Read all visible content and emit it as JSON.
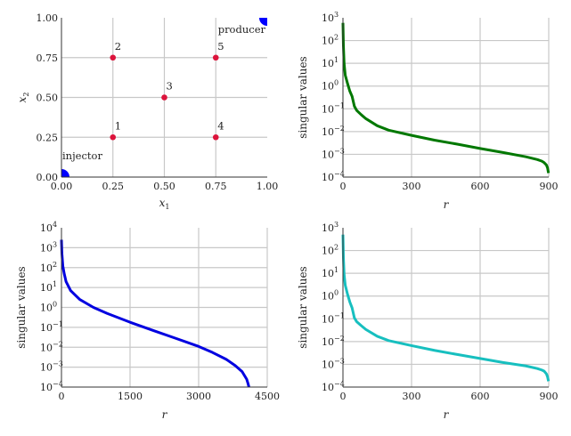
{
  "chart_data": [
    {
      "type": "scatter",
      "xlabel": "x",
      "xlabel_sub": "1",
      "ylabel": "x",
      "ylabel_sub": "2",
      "xlim": [
        0,
        1
      ],
      "ylim": [
        0,
        1
      ],
      "grid": true,
      "xticks": [
        "0.00",
        "0.25",
        "0.50",
        "0.75",
        "1.00"
      ],
      "yticks": [
        "0.00",
        "0.25",
        "0.50",
        "0.75",
        "1.00"
      ],
      "points": [
        {
          "label": "1",
          "x": 0.25,
          "y": 0.25
        },
        {
          "label": "2",
          "x": 0.25,
          "y": 0.75
        },
        {
          "label": "3",
          "x": 0.5,
          "y": 0.5
        },
        {
          "label": "4",
          "x": 0.75,
          "y": 0.25
        },
        {
          "label": "5",
          "x": 0.75,
          "y": 0.75
        }
      ],
      "point_color": "#dc143c",
      "wells": [
        {
          "label": "injector",
          "x": 0,
          "y": 0
        },
        {
          "label": "producer",
          "x": 1,
          "y": 1
        }
      ],
      "well_color": "#0000ff"
    },
    {
      "type": "line",
      "xlabel": "r",
      "ylabel": "singular values",
      "scale_y": "log",
      "xlim": [
        0,
        900
      ],
      "ylim": [
        0.0001,
        1000
      ],
      "grid": true,
      "xticks": [
        "0",
        "300",
        "600",
        "900"
      ],
      "yticks_exp": [
        "3",
        "2",
        "1",
        "0",
        "-1",
        "-2",
        "-3",
        "-4"
      ],
      "color": "#007800",
      "series": [
        {
          "x": [
            0,
            2,
            5,
            10,
            20,
            30,
            40,
            50,
            60,
            80,
            100,
            150,
            200,
            300,
            400,
            500,
            600,
            700,
            800,
            850,
            870,
            880,
            890,
            895,
            899
          ],
          "y": [
            600,
            60,
            10,
            3,
            1.3,
            0.6,
            0.35,
            0.13,
            0.085,
            0.055,
            0.037,
            0.018,
            0.0115,
            0.0068,
            0.0042,
            0.0028,
            0.0018,
            0.0012,
            0.00078,
            0.00059,
            0.0005,
            0.00043,
            0.00034,
            0.00025,
            0.00015
          ]
        }
      ]
    },
    {
      "type": "line",
      "xlabel": "r",
      "ylabel": "singular values",
      "scale_y": "log",
      "xlim": [
        0,
        4500
      ],
      "ylim": [
        0.0001,
        10000
      ],
      "grid": true,
      "xticks": [
        "0",
        "1500",
        "3000",
        "4500"
      ],
      "yticks_exp": [
        "4",
        "3",
        "2",
        "1",
        "0",
        "-1",
        "-2",
        "-3",
        "-4"
      ],
      "color": "#0000e0",
      "series": [
        {
          "x": [
            0,
            10,
            30,
            60,
            100,
            200,
            400,
            700,
            1000,
            1500,
            2000,
            2500,
            3000,
            3300,
            3600,
            3800,
            3950,
            4050,
            4080,
            4100
          ],
          "y": [
            2500,
            500,
            120,
            50,
            20,
            7,
            2.5,
            1,
            0.5,
            0.18,
            0.07,
            0.028,
            0.011,
            0.0055,
            0.0025,
            0.0012,
            0.0006,
            0.00025,
            0.00015,
            0.0001
          ]
        }
      ]
    },
    {
      "type": "line",
      "xlabel": "r",
      "ylabel": "singular values",
      "scale_y": "log",
      "xlim": [
        0,
        900
      ],
      "ylim": [
        0.0001,
        1000
      ],
      "grid": true,
      "xticks": [
        "0",
        "300",
        "600",
        "900"
      ],
      "yticks_exp": [
        "3",
        "2",
        "1",
        "0",
        "-1",
        "-2",
        "-3",
        "-4"
      ],
      "color": "#17bfbf",
      "series": [
        {
          "x": [
            0,
            2,
            5,
            10,
            20,
            30,
            40,
            50,
            60,
            80,
            100,
            150,
            200,
            300,
            400,
            500,
            600,
            700,
            800,
            850,
            870,
            880,
            890,
            895,
            899
          ],
          "y": [
            500,
            50,
            9,
            3,
            1.2,
            0.55,
            0.3,
            0.11,
            0.075,
            0.05,
            0.034,
            0.017,
            0.011,
            0.0066,
            0.0041,
            0.0027,
            0.0018,
            0.0012,
            0.00085,
            0.00065,
            0.00056,
            0.0005,
            0.00038,
            0.00028,
            0.00018
          ]
        }
      ]
    }
  ]
}
